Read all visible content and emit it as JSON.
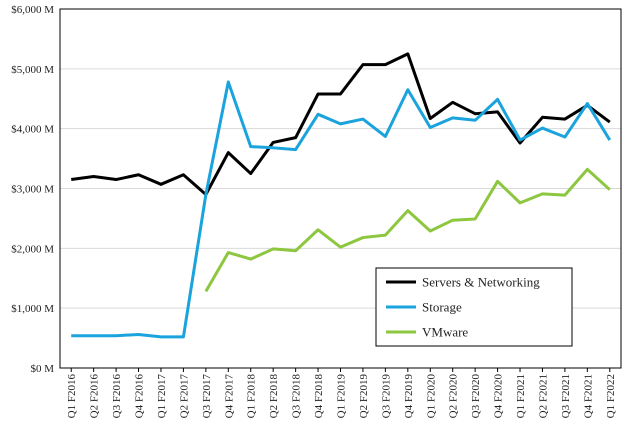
{
  "chart_data": {
    "type": "line",
    "title": "",
    "xlabel": "",
    "ylabel": "",
    "ylim": [
      0,
      6000
    ],
    "y_ticks": [
      0,
      1000,
      2000,
      3000,
      4000,
      5000,
      6000
    ],
    "y_tick_labels": [
      "$0 M",
      "$1,000 M",
      "$2,000 M",
      "$3,000 M",
      "$4,000 M",
      "$5,000 M",
      "$6,000 M"
    ],
    "grid": true,
    "legend_position": "bottom-right",
    "categories": [
      "Q1 F2016",
      "Q2 F2016",
      "Q3 F2016",
      "Q4 F2016",
      "Q1 F2017",
      "Q2 F2017",
      "Q3 F2017",
      "Q4 F2017",
      "Q1 F2018",
      "Q2 F2018",
      "Q3 F2018",
      "Q4 F2018",
      "Q1 F2019",
      "Q2 F2019",
      "Q3 F2019",
      "Q4 F2019",
      "Q1 F2020",
      "Q2 F2020",
      "Q3 F2020",
      "Q4 F2020",
      "Q1 F2021",
      "Q2 F2021",
      "Q3 F2021",
      "Q4 F2021",
      "Q1 F2022"
    ],
    "series": [
      {
        "name": "Servers & Networking",
        "color": "#000000",
        "values": [
          3150,
          3200,
          3150,
          3230,
          3070,
          3230,
          2900,
          3600,
          3250,
          3770,
          3850,
          4580,
          4580,
          5070,
          5070,
          5250,
          4170,
          4440,
          4250,
          4280,
          3760,
          4190,
          4160,
          4390,
          4110
        ]
      },
      {
        "name": "Storage",
        "color": "#1aa3dc",
        "values": [
          540,
          540,
          540,
          560,
          520,
          520,
          2900,
          4780,
          3700,
          3680,
          3650,
          4240,
          4080,
          4160,
          3870,
          4650,
          4020,
          4180,
          4140,
          4490,
          3810,
          4010,
          3860,
          4420,
          3810
        ]
      },
      {
        "name": "VMware",
        "color": "#8dc63f",
        "values": [
          null,
          null,
          null,
          null,
          null,
          null,
          1280,
          1930,
          1820,
          1990,
          1960,
          2310,
          2020,
          2180,
          2220,
          2630,
          2290,
          2470,
          2490,
          3120,
          2760,
          2910,
          2890,
          3320,
          2980
        ]
      }
    ]
  }
}
